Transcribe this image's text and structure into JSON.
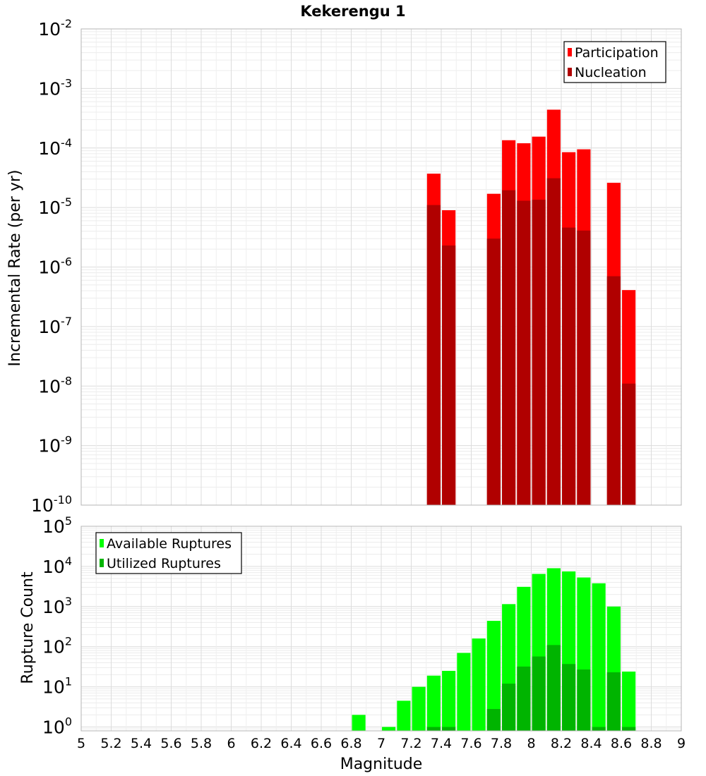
{
  "chart_data": [
    {
      "type": "bar",
      "title": "Kekerengu 1",
      "ylabel": "Incremental Rate (per yr)",
      "xlabel": "",
      "xlim": [
        5,
        9
      ],
      "ylim": [
        1e-10,
        0.01
      ],
      "y_scale": "log",
      "grid": true,
      "legend_position": "top-right",
      "bar_width": 0.09,
      "y_tick_exponents": [
        "-10",
        "-9",
        "-8",
        "-7",
        "-6",
        "-5",
        "-4",
        "-3",
        "-2"
      ],
      "y_tick_base": "10",
      "x": [
        7.35,
        7.45,
        7.75,
        7.85,
        7.95,
        8.05,
        8.15,
        8.25,
        8.35,
        8.55,
        8.65
      ],
      "series": [
        {
          "name": "Participation",
          "color": "#ff0000",
          "values": [
            3.7e-05,
            9e-06,
            1.7e-05,
            0.000135,
            0.00012,
            0.000155,
            0.00044,
            8.5e-05,
            9.5e-05,
            2.6e-05,
            4.1e-07
          ]
        },
        {
          "name": "Nucleation",
          "color": "#b00000",
          "values": [
            1.1e-05,
            2.3e-06,
            3e-06,
            1.95e-05,
            1.3e-05,
            1.35e-05,
            3.1e-05,
            4.6e-06,
            4.1e-06,
            7e-07,
            1.1e-08
          ]
        }
      ]
    },
    {
      "type": "bar",
      "title": "",
      "xlabel": "Magnitude",
      "ylabel": "Rupture Count",
      "xlim": [
        5,
        9
      ],
      "ylim": [
        0.8,
        100000.0
      ],
      "y_scale": "log",
      "grid": true,
      "legend_position": "top-left",
      "bar_width": 0.09,
      "y_tick_exponents": [
        "0",
        "1",
        "2",
        "3",
        "4",
        "5"
      ],
      "y_tick_base": "10",
      "x_ticks": [
        "5",
        "5.2",
        "5.4",
        "5.6",
        "5.8",
        "6",
        "6.2",
        "6.4",
        "6.6",
        "6.8",
        "7",
        "7.2",
        "7.4",
        "7.6",
        "7.8",
        "8",
        "8.2",
        "8.4",
        "8.6",
        "8.8",
        "9"
      ],
      "x": [
        6.85,
        7.05,
        7.15,
        7.25,
        7.35,
        7.45,
        7.55,
        7.65,
        7.75,
        7.85,
        7.95,
        8.05,
        8.15,
        8.25,
        8.35,
        8.45,
        8.55,
        8.65
      ],
      "series": [
        {
          "name": "Available Ruptures",
          "color": "#00ff00",
          "values": [
            2,
            1,
            4.5,
            10,
            19,
            25,
            70,
            160,
            440,
            1150,
            3100,
            6500,
            9000,
            7500,
            5300,
            3800,
            1000,
            24
          ]
        },
        {
          "name": "Utilized Ruptures",
          "color": "#00b400",
          "values": [
            0,
            0,
            0,
            0,
            1,
            1,
            0,
            0,
            2.8,
            12,
            32,
            57,
            110,
            37,
            27,
            1,
            23,
            1
          ]
        }
      ]
    }
  ]
}
